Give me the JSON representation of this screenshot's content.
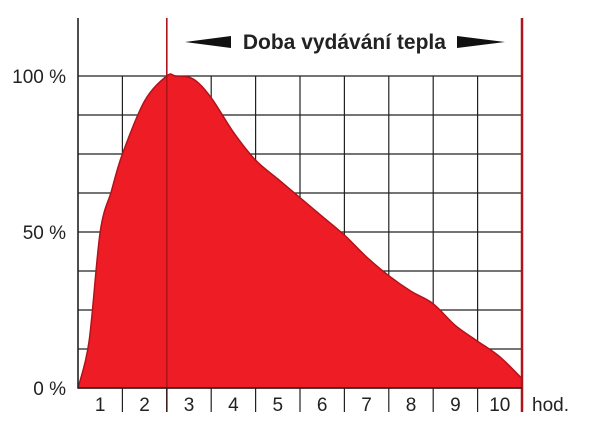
{
  "chart_data": {
    "type": "area",
    "title": "Doba vydávání tepla",
    "xlabel": "hod.",
    "ylabel": "",
    "x_ticks": [
      "1",
      "2",
      "3",
      "4",
      "5",
      "6",
      "7",
      "8",
      "9",
      "10"
    ],
    "y_ticks": [
      {
        "value": 0,
        "label": "0 %"
      },
      {
        "value": 50,
        "label": "50 %"
      },
      {
        "value": 100,
        "label": "100 %"
      }
    ],
    "xlim": [
      0,
      10
    ],
    "ylim": [
      0,
      100
    ],
    "grid": true,
    "period_start_hour": 2,
    "period_end_hour": 10,
    "series": [
      {
        "x": [
          0,
          0.25,
          0.5,
          0.75,
          1,
          1.5,
          2,
          2.2,
          2.6,
          3,
          3.5,
          4,
          4.5,
          5,
          5.5,
          6,
          6.5,
          7,
          7.5,
          8,
          8.5,
          9,
          9.5,
          10
        ],
        "y": [
          0,
          15,
          50,
          63,
          75,
          92,
          100,
          100,
          99,
          93,
          82,
          73,
          67,
          61,
          55,
          49,
          42,
          36,
          31,
          27,
          20,
          15,
          10,
          3
        ]
      }
    ],
    "colors": {
      "fill": "#ee1c25",
      "stroke": "#b0141b",
      "marker": "#b0141b",
      "grid": "#222222"
    }
  }
}
